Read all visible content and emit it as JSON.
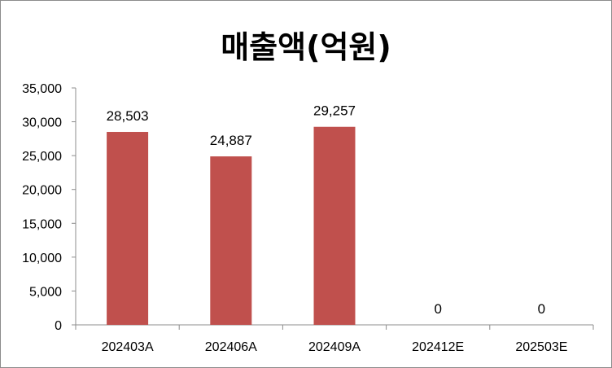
{
  "chart_data": {
    "type": "bar",
    "title": "매출액(억원)",
    "categories": [
      "202403A",
      "202406A",
      "202409A",
      "202412E",
      "202503E"
    ],
    "values": [
      28503,
      24887,
      29257,
      0,
      0
    ],
    "data_labels": [
      "28,503",
      "24,887",
      "29,257",
      "0",
      "0"
    ],
    "y_ticks": [
      "0",
      "5,000",
      "10,000",
      "15,000",
      "20,000",
      "25,000",
      "30,000",
      "35,000"
    ],
    "ylim": [
      0,
      35000
    ],
    "y_step": 5000,
    "xlabel": "",
    "ylabel": "",
    "grid": false,
    "legend": "none",
    "bar_color": "#c0504d"
  }
}
